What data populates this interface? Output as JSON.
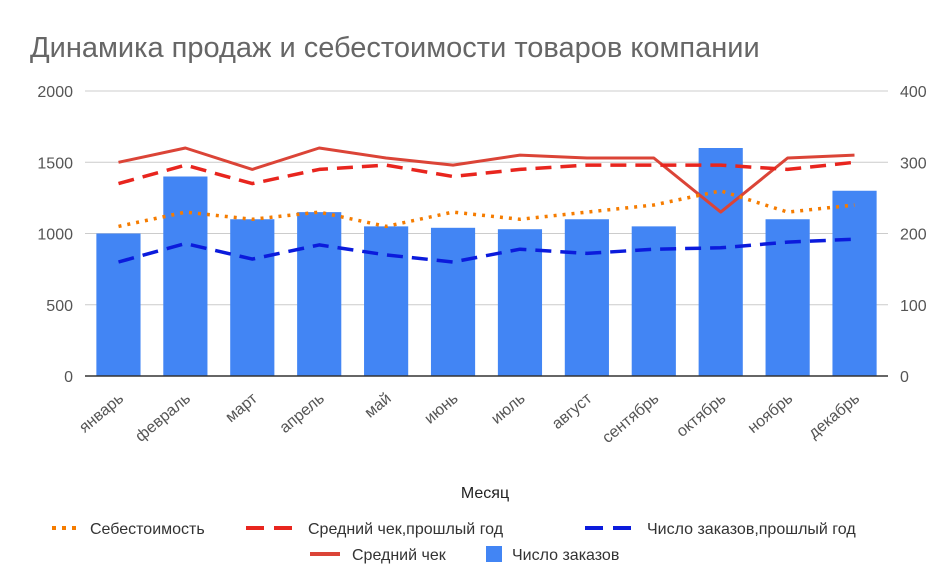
{
  "chart_data": {
    "type": "bar",
    "title": "Динамика продаж и себестоимости товаров компании",
    "xlabel": "Месяц",
    "ylabel": "",
    "ylim": [
      0,
      2000
    ],
    "y2lim": [
      0,
      400
    ],
    "left_ticks": [
      "2000",
      "1500",
      "1000",
      "500",
      "0"
    ],
    "right_ticks": [
      "400",
      "300",
      "200",
      "100",
      "0"
    ],
    "grid": true,
    "legend_position": "bottom",
    "categories": [
      "январь",
      "февраль",
      "март",
      "апрель",
      "май",
      "июнь",
      "июль",
      "август",
      "сентябрь",
      "октябрь",
      "ноябрь",
      "декабрь"
    ],
    "series": [
      {
        "name": "Себестоимость",
        "kind": "dotted-line",
        "axis": "left",
        "color": "#f57c00",
        "values": [
          1050,
          1150,
          1100,
          1150,
          1050,
          1150,
          1100,
          1150,
          1200,
          1300,
          1150,
          1200
        ]
      },
      {
        "name": "Средний чек,прошлый год",
        "kind": "dashed-line",
        "axis": "left",
        "color": "#e8251e",
        "values": [
          1350,
          1480,
          1350,
          1450,
          1480,
          1400,
          1450,
          1480,
          1480,
          1480,
          1450,
          1500
        ]
      },
      {
        "name": "Число заказов,прошлый год",
        "kind": "dashed-line",
        "axis": "left",
        "color": "#0b1bdc",
        "values": [
          800,
          930,
          820,
          920,
          850,
          800,
          890,
          860,
          890,
          900,
          940,
          960
        ]
      },
      {
        "name": "Средний чек",
        "kind": "line",
        "axis": "left",
        "color": "#db4437",
        "values": [
          1500,
          1600,
          1450,
          1600,
          1530,
          1480,
          1550,
          1530,
          1530,
          1150,
          1530,
          1550
        ]
      },
      {
        "name": "Число заказов",
        "kind": "bar",
        "axis": "left",
        "color": "#4285f4",
        "values": [
          1000,
          1400,
          1100,
          1150,
          1050,
          1040,
          1030,
          1100,
          1050,
          1600,
          1100,
          1300
        ]
      }
    ]
  }
}
